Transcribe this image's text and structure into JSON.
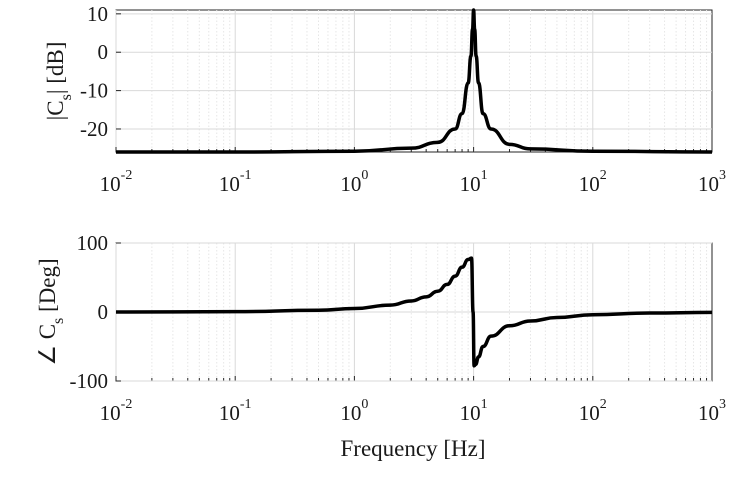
{
  "chart_data": [
    {
      "type": "line",
      "id": "magnitude",
      "ylabel_main": "|C",
      "ylabel_sub": "s",
      "ylabel_rest": "| [dB]",
      "xlabel": "",
      "xscale": "log",
      "xlim": [
        0.01,
        1000
      ],
      "ylim": [
        -26,
        11
      ],
      "yticks": [
        "10",
        "0",
        "-10",
        "-20"
      ],
      "ytick_values": [
        10,
        0,
        -10,
        -20
      ],
      "xticks": [
        {
          "base": "10",
          "exp": "-2"
        },
        {
          "base": "10",
          "exp": "-1"
        },
        {
          "base": "10",
          "exp": "0"
        },
        {
          "base": "10",
          "exp": "1"
        },
        {
          "base": "10",
          "exp": "2"
        },
        {
          "base": "10",
          "exp": "3"
        }
      ],
      "grid": true,
      "series": [
        {
          "color": "#000000",
          "x": [
            0.01,
            0.1,
            1,
            3,
            5,
            7,
            8,
            9,
            9.5,
            9.8,
            10,
            10.2,
            10.5,
            11,
            12,
            14,
            20,
            30,
            100,
            1000
          ],
          "y": [
            -26,
            -26,
            -25.8,
            -25,
            -23.5,
            -20,
            -16,
            -8,
            -1,
            6,
            11,
            6,
            -1,
            -8,
            -16,
            -20,
            -24,
            -25.2,
            -25.8,
            -26
          ]
        }
      ]
    },
    {
      "type": "line",
      "id": "phase",
      "ylabel_main": "∠ C",
      "ylabel_sub": "s",
      "ylabel_rest": " [Deg]",
      "xlabel": "Frequency [Hz]",
      "xscale": "log",
      "xlim": [
        0.01,
        1000
      ],
      "ylim": [
        -100,
        100
      ],
      "yticks": [
        "100",
        "0",
        "-100"
      ],
      "ytick_values": [
        100,
        0,
        -100
      ],
      "xticks": [
        {
          "base": "10",
          "exp": "-2"
        },
        {
          "base": "10",
          "exp": "-1"
        },
        {
          "base": "10",
          "exp": "0"
        },
        {
          "base": "10",
          "exp": "1"
        },
        {
          "base": "10",
          "exp": "2"
        },
        {
          "base": "10",
          "exp": "3"
        }
      ],
      "grid": true,
      "series": [
        {
          "color": "#000000",
          "x": [
            0.01,
            0.1,
            0.5,
            1,
            2,
            3,
            4,
            5,
            6,
            7,
            8,
            9,
            9.6,
            9.9,
            10.1,
            10.4,
            11,
            12,
            14,
            20,
            30,
            50,
            100,
            300,
            1000
          ],
          "y": [
            0,
            0.5,
            2.5,
            5,
            10,
            16,
            22,
            30,
            40,
            52,
            65,
            76,
            78,
            0,
            -78,
            -76,
            -65,
            -50,
            -35,
            -20,
            -13,
            -8,
            -4,
            -1.5,
            -0.5
          ]
        }
      ]
    }
  ]
}
